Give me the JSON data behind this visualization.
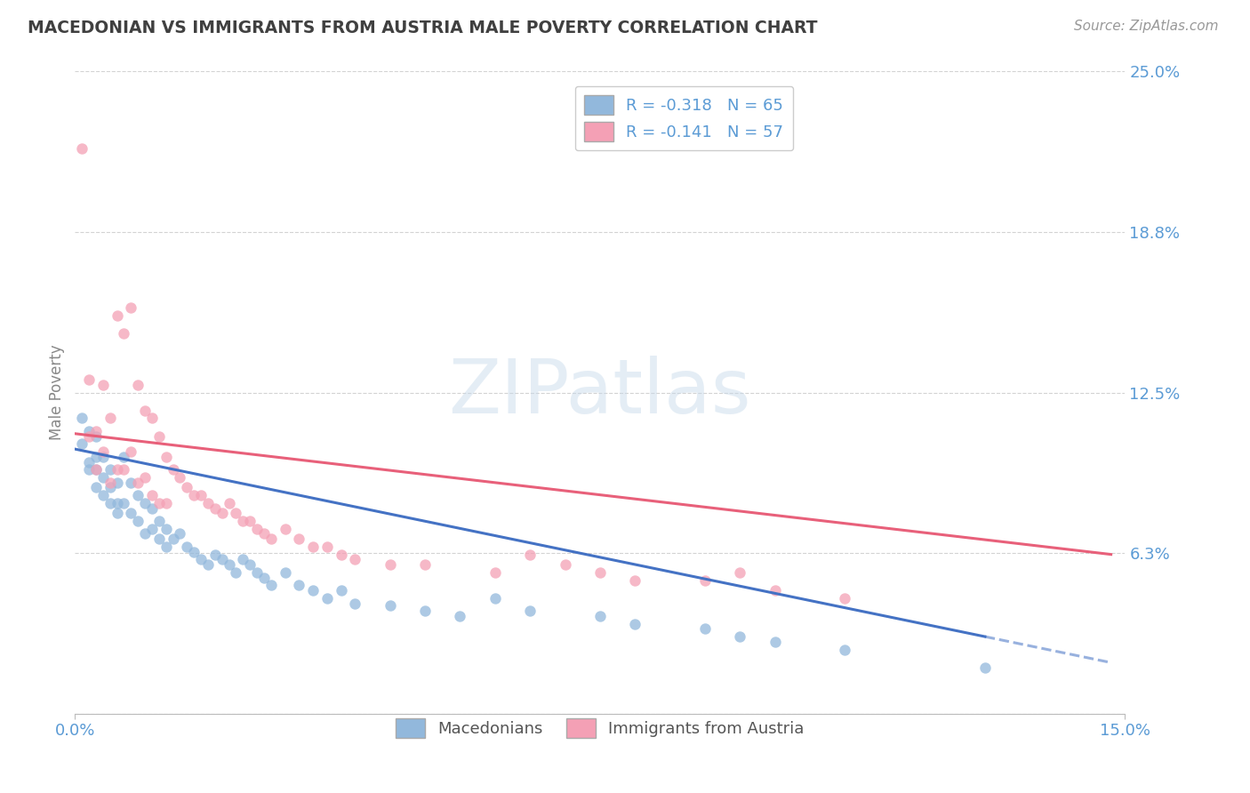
{
  "title": "MACEDONIAN VS IMMIGRANTS FROM AUSTRIA MALE POVERTY CORRELATION CHART",
  "source_text": "Source: ZipAtlas.com",
  "ylabel": "Male Poverty",
  "xlim": [
    0.0,
    0.15
  ],
  "ylim": [
    0.0,
    0.25
  ],
  "yticks": [
    0.0,
    0.0625,
    0.125,
    0.1875,
    0.25
  ],
  "ytick_labels": [
    "",
    "6.3%",
    "12.5%",
    "18.8%",
    "25.0%"
  ],
  "xtick_positions": [
    0.0,
    0.15
  ],
  "xtick_labels": [
    "0.0%",
    "15.0%"
  ],
  "series1_color": "#92b8dc",
  "series2_color": "#f4a0b5",
  "trend1_color": "#4472c4",
  "trend2_color": "#e8607a",
  "r1": -0.318,
  "n1": 65,
  "r2": -0.141,
  "n2": 57,
  "legend_label1": "Macedonians",
  "legend_label2": "Immigrants from Austria",
  "watermark": "ZIPatlas",
  "background_color": "#ffffff",
  "grid_color": "#c8c8c8",
  "title_color": "#404040",
  "tick_label_color": "#5b9bd5",
  "macedonian_x": [
    0.001,
    0.001,
    0.002,
    0.002,
    0.002,
    0.003,
    0.003,
    0.003,
    0.003,
    0.004,
    0.004,
    0.004,
    0.005,
    0.005,
    0.005,
    0.006,
    0.006,
    0.006,
    0.007,
    0.007,
    0.008,
    0.008,
    0.009,
    0.009,
    0.01,
    0.01,
    0.011,
    0.011,
    0.012,
    0.012,
    0.013,
    0.013,
    0.014,
    0.015,
    0.016,
    0.017,
    0.018,
    0.019,
    0.02,
    0.021,
    0.022,
    0.023,
    0.024,
    0.025,
    0.026,
    0.027,
    0.028,
    0.03,
    0.032,
    0.034,
    0.036,
    0.038,
    0.04,
    0.045,
    0.05,
    0.055,
    0.06,
    0.065,
    0.075,
    0.08,
    0.09,
    0.095,
    0.1,
    0.11,
    0.13
  ],
  "macedonian_y": [
    0.115,
    0.105,
    0.11,
    0.098,
    0.095,
    0.108,
    0.1,
    0.095,
    0.088,
    0.1,
    0.092,
    0.085,
    0.095,
    0.088,
    0.082,
    0.09,
    0.082,
    0.078,
    0.1,
    0.082,
    0.09,
    0.078,
    0.085,
    0.075,
    0.082,
    0.07,
    0.08,
    0.072,
    0.075,
    0.068,
    0.072,
    0.065,
    0.068,
    0.07,
    0.065,
    0.063,
    0.06,
    0.058,
    0.062,
    0.06,
    0.058,
    0.055,
    0.06,
    0.058,
    0.055,
    0.053,
    0.05,
    0.055,
    0.05,
    0.048,
    0.045,
    0.048,
    0.043,
    0.042,
    0.04,
    0.038,
    0.045,
    0.04,
    0.038,
    0.035,
    0.033,
    0.03,
    0.028,
    0.025,
    0.018
  ],
  "austria_x": [
    0.001,
    0.002,
    0.002,
    0.003,
    0.003,
    0.004,
    0.004,
    0.005,
    0.005,
    0.006,
    0.006,
    0.007,
    0.007,
    0.008,
    0.008,
    0.009,
    0.009,
    0.01,
    0.01,
    0.011,
    0.011,
    0.012,
    0.012,
    0.013,
    0.013,
    0.014,
    0.015,
    0.016,
    0.017,
    0.018,
    0.019,
    0.02,
    0.021,
    0.022,
    0.023,
    0.024,
    0.025,
    0.026,
    0.027,
    0.028,
    0.03,
    0.032,
    0.034,
    0.036,
    0.038,
    0.04,
    0.045,
    0.05,
    0.06,
    0.065,
    0.07,
    0.075,
    0.08,
    0.09,
    0.095,
    0.1,
    0.11
  ],
  "austria_y": [
    0.22,
    0.13,
    0.108,
    0.11,
    0.095,
    0.128,
    0.102,
    0.115,
    0.09,
    0.155,
    0.095,
    0.148,
    0.095,
    0.158,
    0.102,
    0.128,
    0.09,
    0.118,
    0.092,
    0.115,
    0.085,
    0.108,
    0.082,
    0.1,
    0.082,
    0.095,
    0.092,
    0.088,
    0.085,
    0.085,
    0.082,
    0.08,
    0.078,
    0.082,
    0.078,
    0.075,
    0.075,
    0.072,
    0.07,
    0.068,
    0.072,
    0.068,
    0.065,
    0.065,
    0.062,
    0.06,
    0.058,
    0.058,
    0.055,
    0.062,
    0.058,
    0.055,
    0.052,
    0.052,
    0.055,
    0.048,
    0.045
  ],
  "trend1_x_start": 0.0,
  "trend1_x_end": 0.13,
  "trend1_x_dash_end": 0.148,
  "trend1_y_start": 0.103,
  "trend1_y_end": 0.03,
  "trend2_x_start": 0.0,
  "trend2_x_end": 0.148,
  "trend2_y_start": 0.109,
  "trend2_y_end": 0.062
}
